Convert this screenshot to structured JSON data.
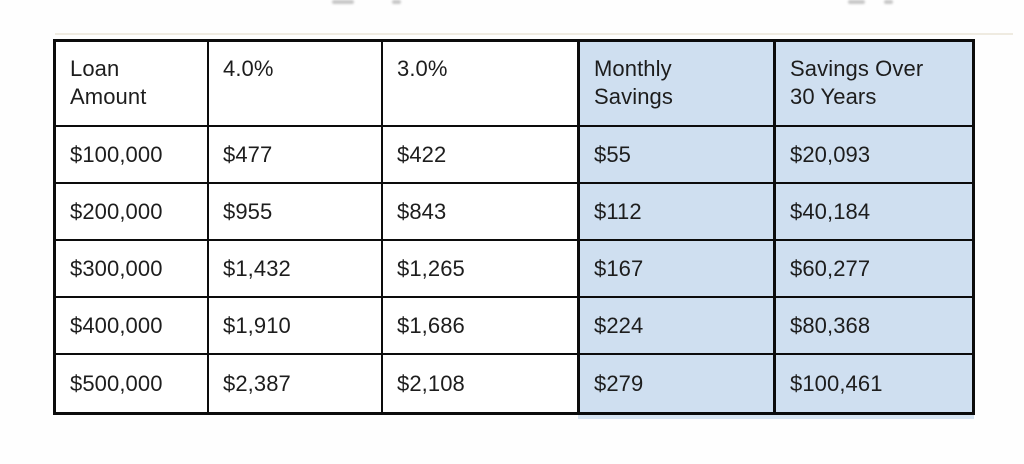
{
  "chart_data": {
    "type": "table",
    "columns": [
      "Loan\nAmount",
      "4.0%",
      "3.0%",
      "Monthly\nSavings",
      "Savings Over\n30 Years"
    ],
    "rows": [
      [
        "$100,000",
        "$477",
        "$422",
        "$55",
        "$20,093"
      ],
      [
        "$200,000",
        "$955",
        "$843",
        "$112",
        "$40,184"
      ],
      [
        "$300,000",
        "$1,432",
        "$1,265",
        "$167",
        "$60,277"
      ],
      [
        "$400,000",
        "$1,910",
        "$1,686",
        "$224",
        "$80,368"
      ],
      [
        "$500,000",
        "$2,387",
        "$2,108",
        "$279",
        "$100,461"
      ]
    ],
    "highlighted_columns": [
      "Monthly Savings",
      "Savings Over 30 Years"
    ],
    "highlight_color": "#cfdff0",
    "border_color": "#0c0c0c",
    "text_color": "#1d1d1d",
    "layout_hint": "5-column comparison table; last two columns highlighted light blue; black grid borders; white gap between plain and highlighted sections"
  }
}
